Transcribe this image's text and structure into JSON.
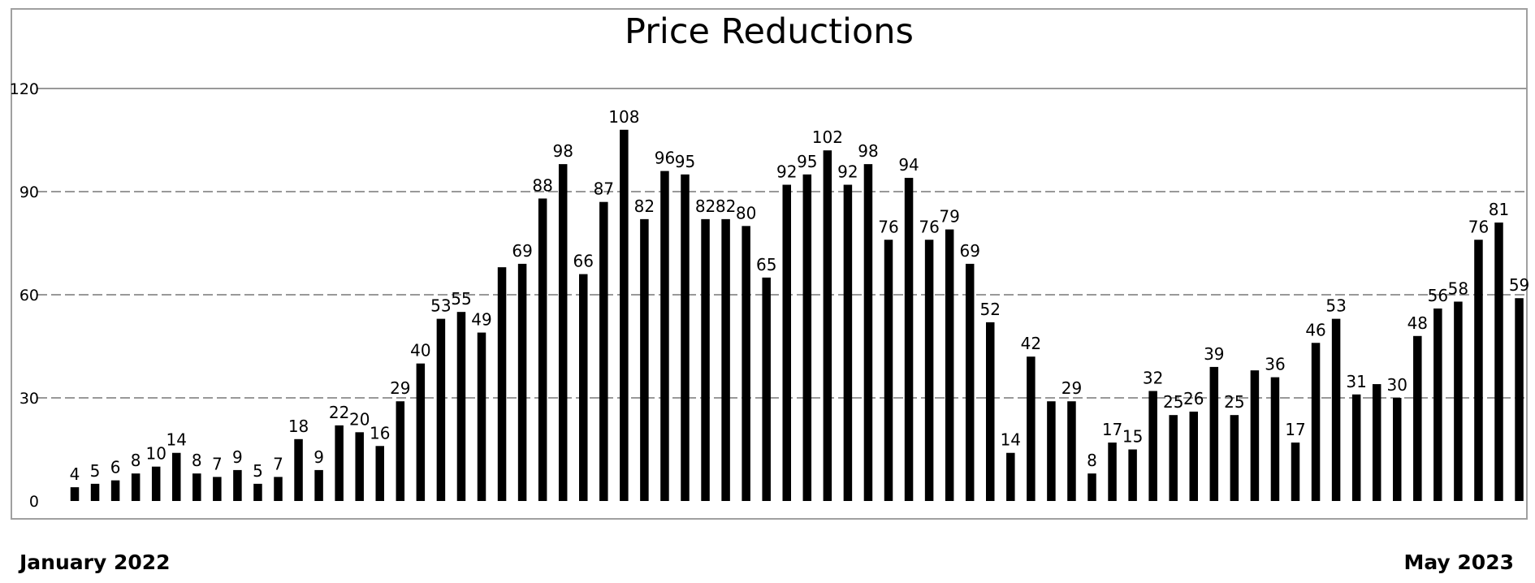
{
  "chart_data": {
    "type": "bar",
    "title": "Price Reductions",
    "xlabel": "",
    "ylabel": "",
    "ylim": [
      0,
      120
    ],
    "yticks": [
      0,
      30,
      60,
      90,
      120
    ],
    "grid": true,
    "legend": "none",
    "bar_color": "#000000",
    "grid_color": "#999999",
    "values": [
      4,
      5,
      6,
      8,
      10,
      14,
      8,
      7,
      9,
      5,
      7,
      18,
      9,
      22,
      20,
      16,
      29,
      40,
      53,
      55,
      49,
      68,
      69,
      88,
      98,
      66,
      87,
      108,
      82,
      96,
      95,
      82,
      82,
      80,
      65,
      92,
      95,
      102,
      92,
      98,
      76,
      94,
      76,
      79,
      69,
      52,
      14,
      42,
      29,
      29,
      8,
      17,
      15,
      32,
      25,
      26,
      39,
      25,
      38,
      36,
      17,
      46,
      53,
      31,
      34,
      30,
      48,
      56,
      58,
      76,
      81,
      59
    ],
    "data_labels": [
      "4",
      "5",
      "6",
      "8",
      "10",
      "14",
      "8",
      "7",
      "9",
      "5",
      "7",
      "18",
      "9",
      "22",
      "20",
      "16",
      "29",
      "40",
      "53",
      "55",
      "49",
      "",
      "69",
      "88",
      "98",
      "66",
      "87",
      "108",
      "82",
      "96",
      "95",
      "82",
      "82",
      "80",
      "65",
      "92",
      "95",
      "102",
      "92",
      "98",
      "76",
      "94",
      "76",
      "79",
      "69",
      "52",
      "14",
      "42",
      "",
      "29",
      "8",
      "17",
      "15",
      "32",
      "25",
      "26",
      "39",
      "25",
      "",
      "36",
      "17",
      "46",
      "53",
      "31",
      "",
      "30",
      "48",
      "56",
      "58",
      "76",
      "81",
      "59"
    ],
    "start_label": "January 2022",
    "end_label": "May 2023"
  }
}
